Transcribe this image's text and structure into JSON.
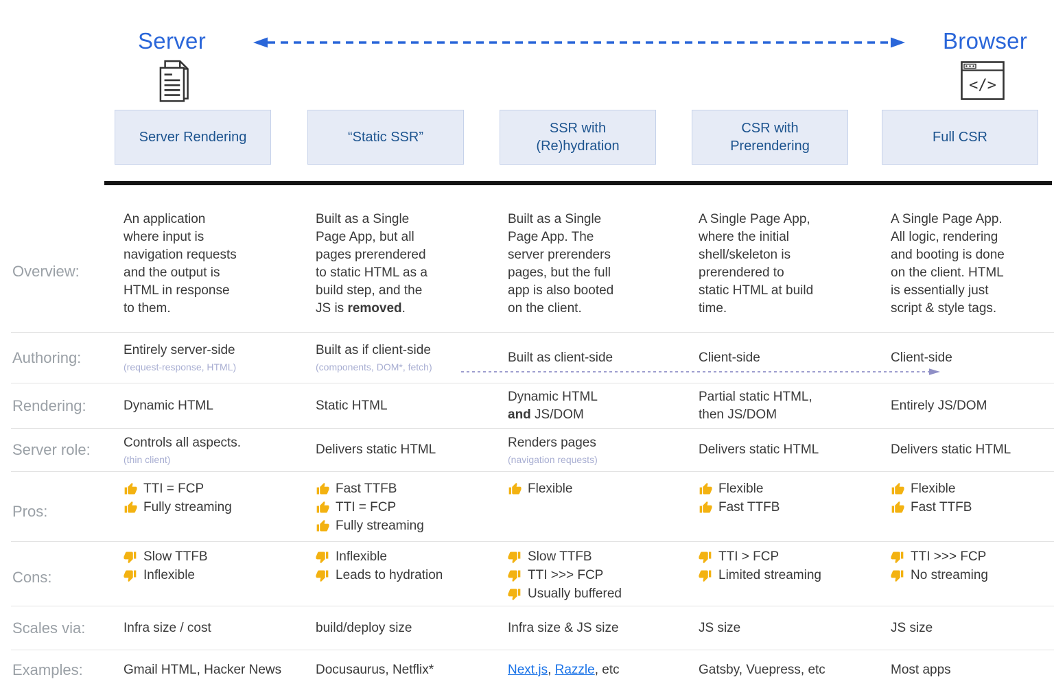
{
  "colors": {
    "accent-blue": "#2a66d9",
    "box-bg": "#e6ebf6",
    "box-border": "#c6d2ea",
    "box-text": "#1d548f",
    "row-label": "#9aa0a6",
    "body-text": "#3a3a3a",
    "note-text": "#a8aed2",
    "link": "#1a73e8",
    "thumb-gold": "#f3b211",
    "authoring-arrow-color": "#9e9ecf",
    "divider": "#e2e2e2",
    "rule": "#141414",
    "icon-stroke": "#333333"
  },
  "header": {
    "server_label": "Server",
    "browser_label": "Browser"
  },
  "icons": {
    "browser_code_glyph": "</>"
  },
  "row_labels": {
    "overview": "Overview:",
    "authoring": "Authoring:",
    "rendering": "Rendering:",
    "server_role": "Server role:",
    "pros": "Pros:",
    "cons": "Cons:",
    "scales": "Scales via:",
    "examples": "Examples:"
  },
  "columns": [
    {
      "header": "Server Rendering",
      "overview": [
        {
          "t": "An application\nwhere input is\nnavigation requests\nand the output is\nHTML in response\nto them."
        }
      ],
      "authoring": "Entirely server-side",
      "authoring_note": "(request-response, HTML)",
      "rendering": [
        {
          "t": "Dynamic HTML"
        }
      ],
      "server_role": "Controls all aspects.",
      "server_role_note": "(thin client)",
      "pros": [
        "TTI = FCP",
        "Fully streaming"
      ],
      "cons": [
        "Slow TTFB",
        "Inflexible"
      ],
      "scales": "Infra size / cost",
      "examples": [
        {
          "t": "Gmail HTML, Hacker News"
        }
      ]
    },
    {
      "header": "“Static SSR”",
      "overview": [
        {
          "t": "Built as a Single\nPage App, but all\npages prerendered\nto static HTML as a\nbuild step, and the\nJS is "
        },
        {
          "t": "removed",
          "b": true
        },
        {
          "t": "."
        }
      ],
      "authoring": "Built as if client-side",
      "authoring_note": "(components, DOM*, fetch)",
      "rendering": [
        {
          "t": "Static HTML"
        }
      ],
      "server_role": "Delivers static HTML",
      "pros": [
        "Fast TTFB",
        "TTI = FCP",
        "Fully streaming"
      ],
      "cons": [
        "Inflexible",
        "Leads to hydration"
      ],
      "scales": "build/deploy size",
      "examples": [
        {
          "t": "Docusaurus, Netflix*"
        }
      ]
    },
    {
      "header": "SSR with\n(Re)hydration",
      "overview": [
        {
          "t": "Built as a Single\nPage App. The\nserver prerenders\npages, but the full\napp is also booted\non the client."
        }
      ],
      "authoring": "Built as client-side",
      "rendering": [
        {
          "t": "Dynamic HTML\n"
        },
        {
          "t": "and",
          "b": true
        },
        {
          "t": " JS/DOM"
        }
      ],
      "server_role": "Renders pages",
      "server_role_note": "(navigation requests)",
      "pros": [
        "Flexible"
      ],
      "cons": [
        "Slow TTFB",
        "TTI >>> FCP",
        "Usually buffered"
      ],
      "scales": "Infra size & JS size",
      "examples": [
        {
          "t": "Next.js",
          "link": true
        },
        {
          "t": ", "
        },
        {
          "t": "Razzle",
          "link": true
        },
        {
          "t": ", etc"
        }
      ]
    },
    {
      "header": "CSR with\nPrerendering",
      "overview": [
        {
          "t": "A Single Page App,\nwhere the initial\nshell/skeleton is\nprerendered to\nstatic HTML at build\ntime."
        }
      ],
      "authoring": "Client-side",
      "rendering": [
        {
          "t": "Partial static HTML,\nthen JS/DOM"
        }
      ],
      "server_role": "Delivers static HTML",
      "pros": [
        "Flexible",
        "Fast TTFB"
      ],
      "cons": [
        "TTI > FCP",
        "Limited streaming"
      ],
      "scales": "JS size",
      "examples": [
        {
          "t": "Gatsby, Vuepress, etc"
        }
      ]
    },
    {
      "header": "Full CSR",
      "overview": [
        {
          "t": "A Single Page App.\nAll logic, rendering\nand booting is done\non the client. HTML\nis essentially just\nscript & style tags."
        }
      ],
      "authoring": "Client-side",
      "rendering": [
        {
          "t": "Entirely JS/DOM"
        }
      ],
      "server_role": "Delivers static HTML",
      "pros": [
        "Flexible",
        "Fast TTFB"
      ],
      "cons": [
        "TTI >>> FCP",
        "No streaming"
      ],
      "scales": "JS size",
      "examples": [
        {
          "t": "Most apps"
        }
      ]
    }
  ]
}
